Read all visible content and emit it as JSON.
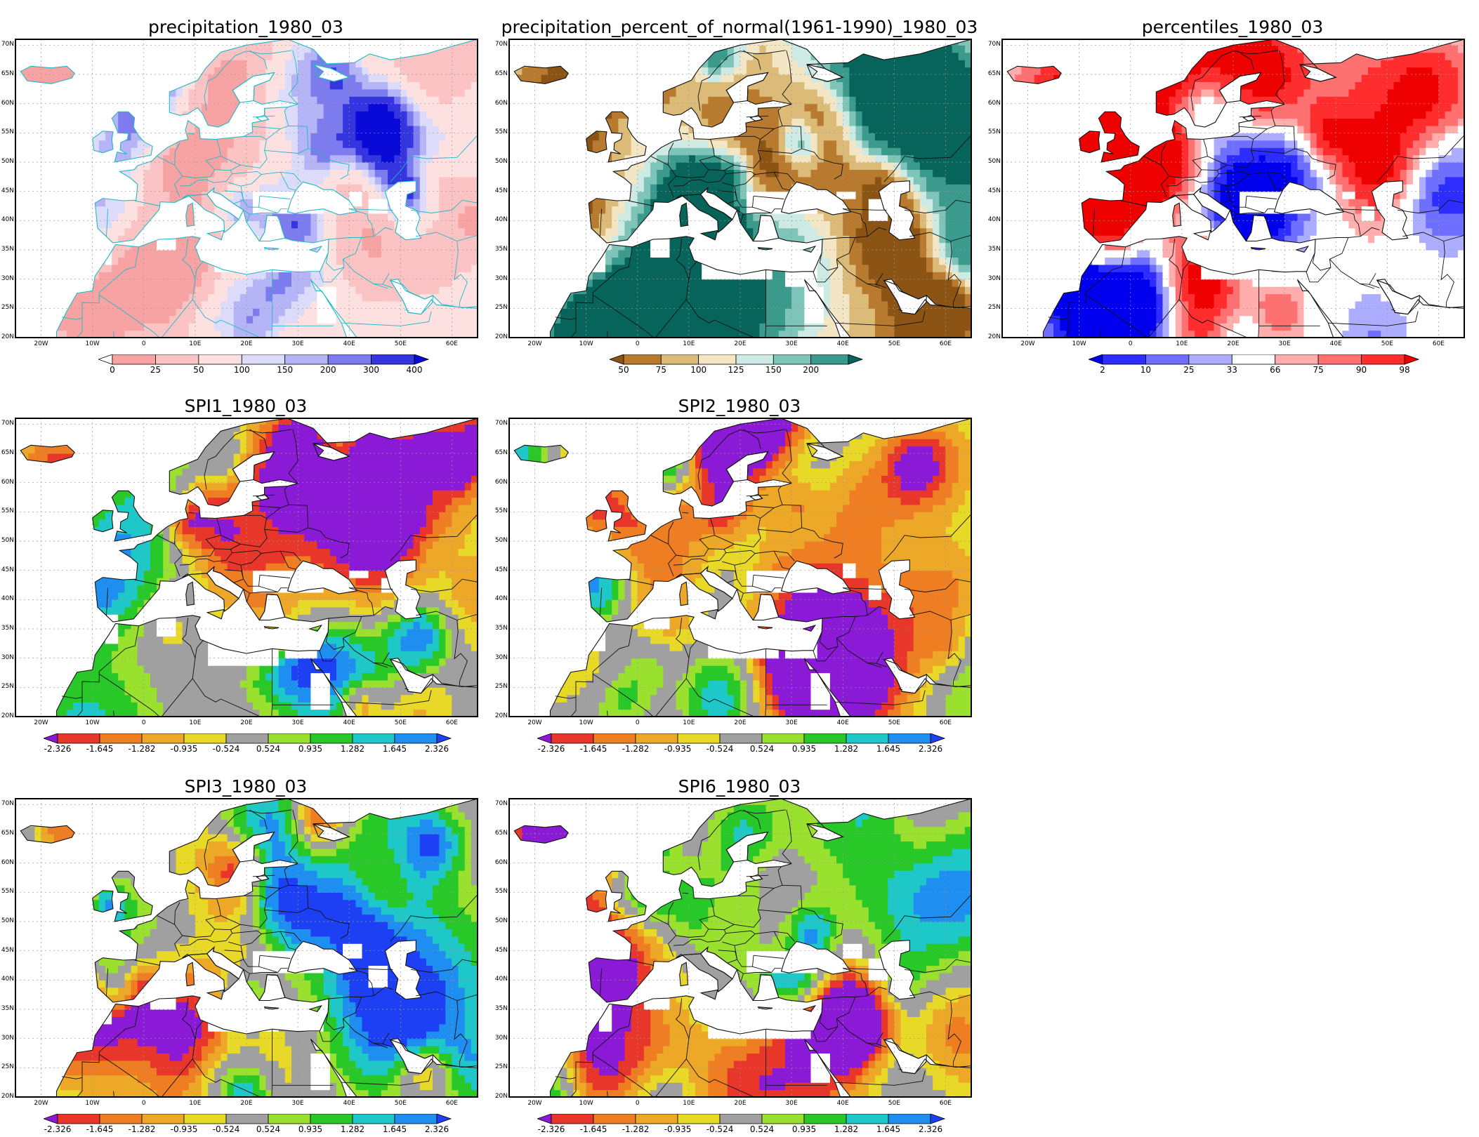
{
  "panels": [
    {
      "id": "precip",
      "title": "precipitation_1980_03",
      "palette": "precip",
      "legend": {
        "labels": [
          "0",
          "25",
          "50",
          "100",
          "150",
          "200",
          "300",
          "400"
        ],
        "colors": [
          "#ffffff",
          "#f8a3a3",
          "#fbc3c3",
          "#fde0e0",
          "#dcdcfa",
          "#b4b4f6",
          "#7c7cee",
          "#3535e0",
          "#0a0ad8"
        ]
      }
    },
    {
      "id": "pct",
      "title": "precipitation_percent_of_normal(1961-1990)_1980_03",
      "palette": "pct",
      "legend": {
        "labels": [
          "50",
          "75",
          "100",
          "125",
          "150",
          "200"
        ],
        "colors": [
          "#8c5414",
          "#b87a2e",
          "#dcbb78",
          "#f3e6c4",
          "#cdeae4",
          "#7fc4b8",
          "#3a9a8c",
          "#06645a"
        ]
      }
    },
    {
      "id": "perc",
      "title": "percentiles_1980_03",
      "palette": "perc",
      "legend": {
        "labels": [
          "2",
          "10",
          "25",
          "33",
          "66",
          "75",
          "90",
          "98"
        ],
        "colors": [
          "#0000ee",
          "#2d2dff",
          "#6e6eff",
          "#adadff",
          "#ffffff",
          "#ffadad",
          "#ff7070",
          "#ff2d2d",
          "#ee0000"
        ]
      }
    },
    {
      "id": "spi1",
      "title": "SPI1_1980_03",
      "palette": "spi",
      "legend": {
        "labels": [
          "-2.326",
          "-1.645",
          "-1.282",
          "-0.935",
          "-0.524",
          "0.524",
          "0.935",
          "1.282",
          "1.645",
          "2.326"
        ],
        "colors": [
          "#8a1ad6",
          "#e8372a",
          "#ef7d22",
          "#eda828",
          "#e8d828",
          "#a0a0a0",
          "#9ae02e",
          "#28c828",
          "#1ec8c8",
          "#1e8ef0",
          "#1e40f5"
        ]
      }
    },
    {
      "id": "spi2",
      "title": "SPI2_1980_03",
      "palette": "spi",
      "legend": {
        "labels": [
          "-2.326",
          "-1.645",
          "-1.282",
          "-0.935",
          "-0.524",
          "0.524",
          "0.935",
          "1.282",
          "1.645",
          "2.326"
        ],
        "colors": [
          "#8a1ad6",
          "#e8372a",
          "#ef7d22",
          "#eda828",
          "#e8d828",
          "#a0a0a0",
          "#9ae02e",
          "#28c828",
          "#1ec8c8",
          "#1e8ef0",
          "#1e40f5"
        ]
      }
    },
    {
      "id": "spi3",
      "title": "SPI3_1980_03",
      "palette": "spi",
      "legend": {
        "labels": [
          "-2.326",
          "-1.645",
          "-1.282",
          "-0.935",
          "-0.524",
          "0.524",
          "0.935",
          "1.282",
          "1.645",
          "2.326"
        ],
        "colors": [
          "#8a1ad6",
          "#e8372a",
          "#ef7d22",
          "#eda828",
          "#e8d828",
          "#a0a0a0",
          "#9ae02e",
          "#28c828",
          "#1ec8c8",
          "#1e8ef0",
          "#1e40f5"
        ]
      }
    },
    {
      "id": "spi6",
      "title": "SPI6_1980_03",
      "palette": "spi",
      "legend": {
        "labels": [
          "-2.326",
          "-1.645",
          "-1.282",
          "-0.935",
          "-0.524",
          "0.524",
          "0.935",
          "1.282",
          "1.645",
          "2.326"
        ],
        "colors": [
          "#8a1ad6",
          "#e8372a",
          "#ef7d22",
          "#eda828",
          "#e8d828",
          "#a0a0a0",
          "#9ae02e",
          "#28c828",
          "#1ec8c8",
          "#1e8ef0",
          "#1e40f5"
        ]
      }
    }
  ],
  "lat_labels": [
    "70N",
    "65N",
    "60N",
    "55N",
    "50N",
    "45N",
    "40N",
    "35N",
    "30N",
    "25N",
    "20N"
  ],
  "lon_labels": [
    "20W",
    "10W",
    "0",
    "10E",
    "20E",
    "30E",
    "40E",
    "50E",
    "60E"
  ]
}
